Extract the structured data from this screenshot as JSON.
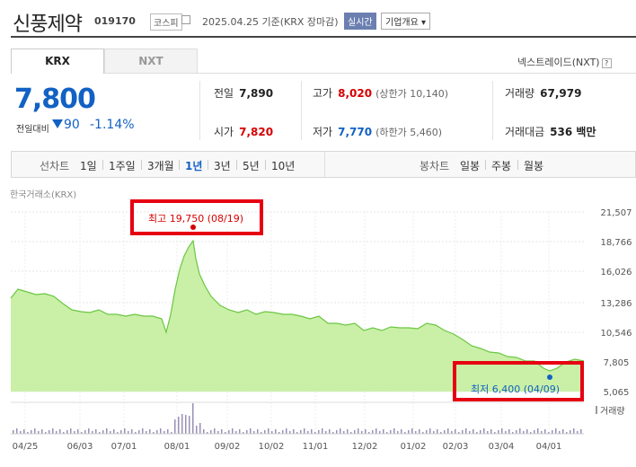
{
  "header": {
    "company_name": "신풍제약",
    "code": "019170",
    "market": "코스피",
    "date_text": "2025.04.25 기준(KRX 장마감)",
    "realtime_label": "실시간",
    "overview_label": "기업개요 ▾"
  },
  "tabs": {
    "krx": "KRX",
    "nxt": "NXT"
  },
  "nxt_link": "넥스트레이드(NXT)",
  "nxt_help": "?",
  "price": {
    "current": "7,800",
    "change_label": "전일대비",
    "change": "90",
    "change_pct": "-1.14%"
  },
  "stats": {
    "prev_label": "전일",
    "prev": "7,890",
    "high_label": "고가",
    "high": "8,020",
    "upper_limit": "(상한가 10,140)",
    "volume_label": "거래량",
    "volume": "67,979",
    "open_label": "시가",
    "open": "7,820",
    "low_label": "저가",
    "low": "7,770",
    "lower_limit": "(하한가 5,460)",
    "amount_label": "거래대금",
    "amount": "536 백만"
  },
  "period": {
    "line_label": "선차트",
    "options": [
      "1일",
      "1주일",
      "3개월",
      "1년",
      "3년",
      "5년",
      "10년"
    ],
    "active": "1년",
    "candle_label": "봉차트",
    "candle_options": [
      "일봉",
      "주봉",
      "월봉"
    ]
  },
  "chart": {
    "source_label": "한국거래소(KRX)",
    "volume_label": "거래량",
    "high_annotation": "최고 19,750 (08/19)",
    "low_annotation": "최저 6,400 (04/09)",
    "y_ticks": [
      "21,507",
      "18,766",
      "16,026",
      "13,286",
      "10,546",
      "7,805",
      "5,065"
    ],
    "x_ticks": [
      "04/25",
      "06/03",
      "07/01",
      "08/01",
      "09/02",
      "10/02",
      "11/01",
      "12/02",
      "01/02",
      "02/03",
      "03/04",
      "04/01"
    ],
    "colors": {
      "line": "#6cc644",
      "fill": "#c9f0a6",
      "high": "#d60000",
      "low": "#1261c4",
      "highlight": "#e60012"
    }
  }
}
